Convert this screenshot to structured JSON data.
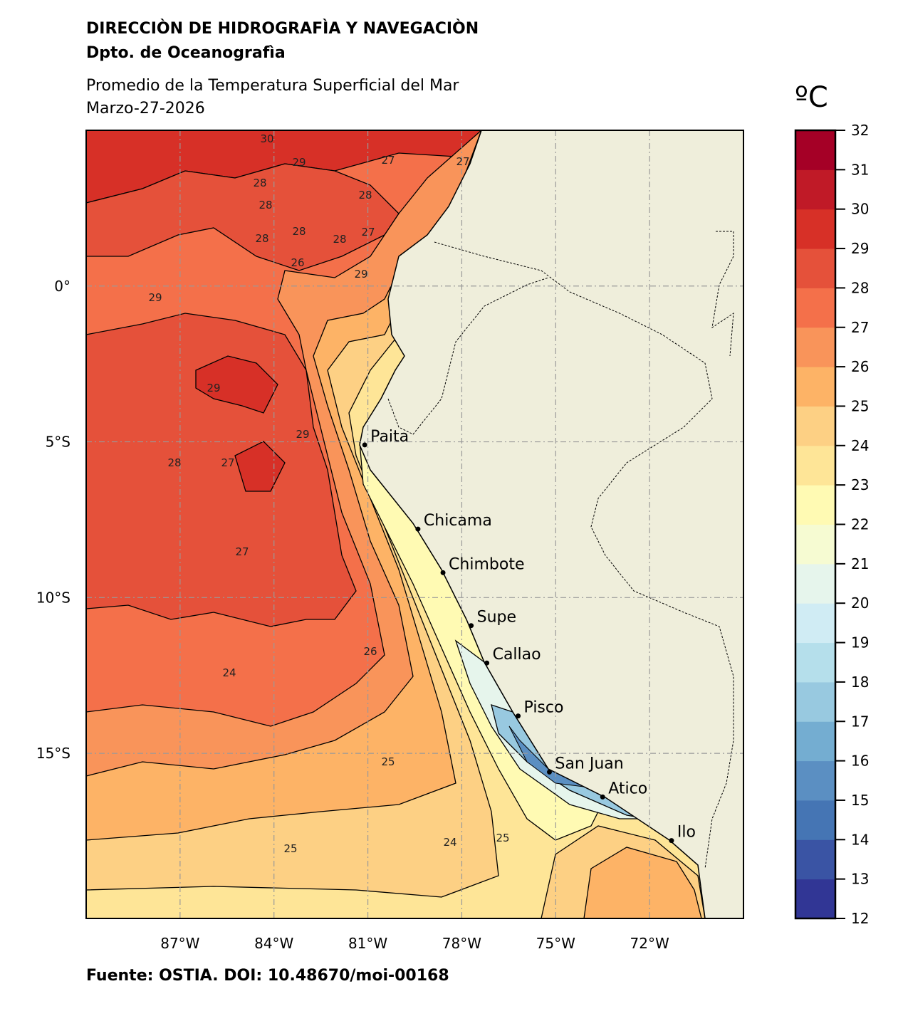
{
  "header": {
    "institution": "DIRECCIÒN DE HIDROGRAFÌA Y NAVEGACIÒN",
    "department": "Dpto. de Oceanografìa",
    "title": "Promedio de la Temperatura Superficial del Mar",
    "date": "Marzo-27-2026"
  },
  "footer": {
    "source": "Fuente: OSTIA. DOI: 10.48670/moi-00168"
  },
  "map": {
    "extent": {
      "lon": [
        -90,
        -69
      ],
      "lat": [
        -20.3,
        5
      ]
    },
    "lon_ticks": [
      {
        "value": -87,
        "label": "87°W"
      },
      {
        "value": -84,
        "label": "84°W"
      },
      {
        "value": -81,
        "label": "81°W"
      },
      {
        "value": -78,
        "label": "78°W"
      },
      {
        "value": -75,
        "label": "75°W"
      },
      {
        "value": -72,
        "label": "72°W"
      }
    ],
    "lat_ticks": [
      {
        "value": 0,
        "label": "0°"
      },
      {
        "value": -5,
        "label": "5°S"
      },
      {
        "value": -10,
        "label": "10°S"
      },
      {
        "value": -15,
        "label": "15°S"
      }
    ],
    "gridlines": true,
    "land_color": "#efeedb",
    "cities": [
      {
        "name": "Paita",
        "lon": -81.1,
        "lat": -5.1
      },
      {
        "name": "Chicama",
        "lon": -79.4,
        "lat": -7.8
      },
      {
        "name": "Chimbote",
        "lon": -78.6,
        "lat": -9.2
      },
      {
        "name": "Supe",
        "lon": -77.7,
        "lat": -10.9
      },
      {
        "name": "Callao",
        "lon": -77.2,
        "lat": -12.1
      },
      {
        "name": "Pisco",
        "lon": -76.2,
        "lat": -13.8
      },
      {
        "name": "San Juan",
        "lon": -75.2,
        "lat": -15.6
      },
      {
        "name": "Atico",
        "lon": -73.5,
        "lat": -16.4
      },
      {
        "name": "Ilo",
        "lon": -71.3,
        "lat": -17.8
      }
    ],
    "contour_labels": [
      "30",
      "29",
      "27",
      "27",
      "28",
      "28",
      "28",
      "28",
      "28",
      "28",
      "26",
      "27",
      "29",
      "29",
      "29",
      "29",
      "28",
      "27",
      "27",
      "26",
      "24",
      "25",
      "25",
      "24",
      "25"
    ]
  },
  "colorbar": {
    "unit": "ºC",
    "levels": [
      12,
      13,
      14,
      15,
      16,
      17,
      18,
      19,
      20,
      21,
      22,
      23,
      24,
      25,
      26,
      27,
      28,
      29,
      30,
      31,
      32
    ],
    "colors": [
      "#313695",
      "#3a54a4",
      "#4575b4",
      "#5b8fc2",
      "#74add1",
      "#98c9e0",
      "#b5dfeb",
      "#d0ecf4",
      "#e6f5ec",
      "#f6fbd2",
      "#fffab3",
      "#fee597",
      "#fdd084",
      "#fdb366",
      "#f9945a",
      "#f4704a",
      "#e5513a",
      "#d73027",
      "#c01a27",
      "#a50026"
    ]
  }
}
